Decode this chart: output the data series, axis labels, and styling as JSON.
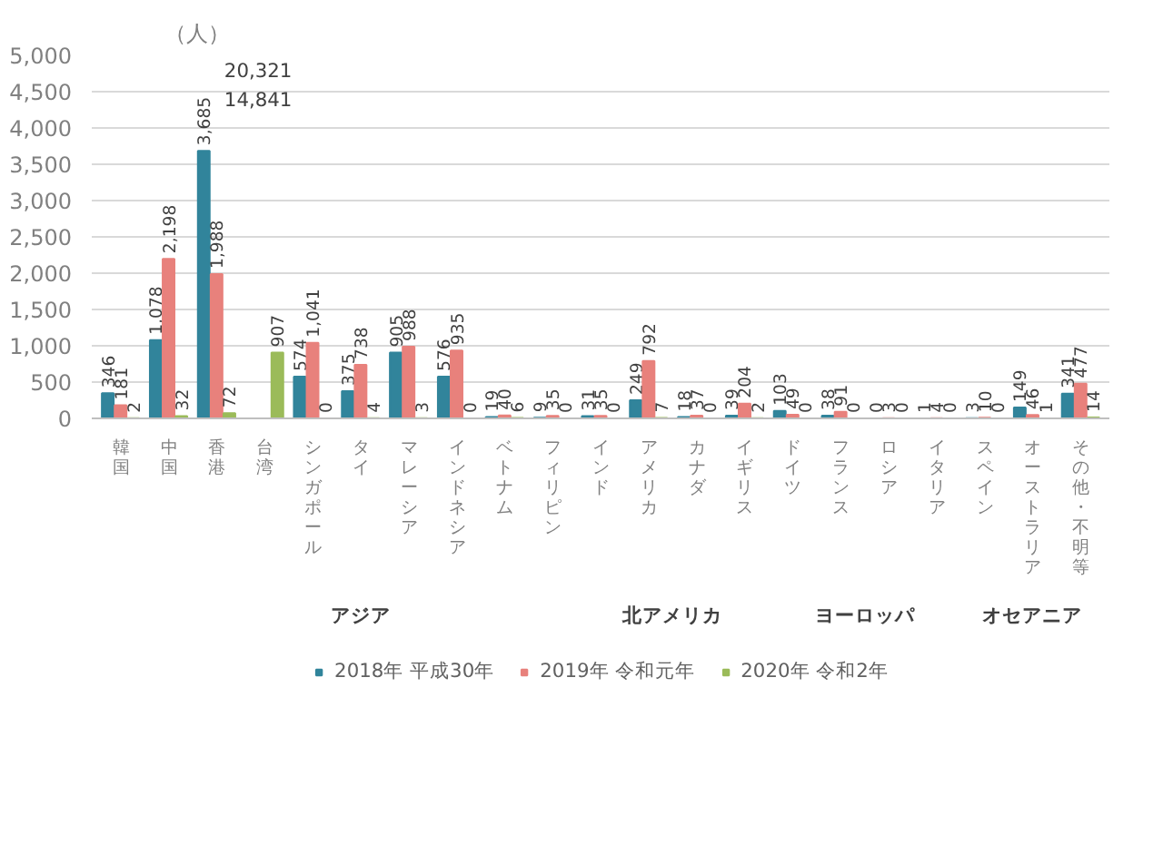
{
  "chart_data": {
    "type": "bar",
    "ylabel": "（人）",
    "categories": [
      "韓国",
      "中国",
      "香港",
      "台湾",
      "シンガポール",
      "タイ",
      "マレーシア",
      "インドネシア",
      "ベトナム",
      "フィリピン",
      "インド",
      "アメリカ",
      "カナダ",
      "イギリス",
      "ドイツ",
      "フランス",
      "ロシア",
      "イタリア",
      "スペイン",
      "オーストラリア",
      "その他・不明等"
    ],
    "series": [
      {
        "name": "2018年 平成30年",
        "color": "#31849b",
        "values": [
          346,
          1078,
          3685,
          null,
          574,
          375,
          905,
          576,
          19,
          9,
          31,
          249,
          18,
          39,
          103,
          38,
          0,
          1,
          3,
          149,
          341
        ],
        "value_labels": [
          "346",
          "1,078",
          "3,685",
          "14,841",
          "574",
          "375",
          "905",
          "576",
          "19",
          "9",
          "31",
          "249",
          "18",
          "39",
          "103",
          "38",
          "0",
          "1",
          "3",
          "149",
          "341"
        ]
      },
      {
        "name": "2019年 令和元年",
        "color": "#e8817c",
        "values": [
          181,
          2198,
          1988,
          null,
          1041,
          738,
          988,
          935,
          40,
          35,
          35,
          792,
          37,
          204,
          49,
          91,
          3,
          4,
          10,
          46,
          477
        ],
        "value_labels": [
          "181",
          "2,198",
          "1,988",
          "20,321",
          "1,041",
          "738",
          "988",
          "935",
          "40",
          "35",
          "35",
          "792",
          "37",
          "204",
          "49",
          "91",
          "3",
          "4",
          "10",
          "46",
          "477"
        ]
      },
      {
        "name": "2020年 令和2年",
        "color": "#9bbb59",
        "values": [
          2,
          32,
          72,
          907,
          0,
          4,
          3,
          0,
          6,
          0,
          0,
          7,
          0,
          2,
          0,
          0,
          0,
          0,
          0,
          1,
          14
        ],
        "value_labels": [
          "2",
          "32",
          "72",
          "907",
          "0",
          "4",
          "3",
          "0",
          "6",
          "0",
          "0",
          "7",
          "0",
          "2",
          "0",
          "0",
          "0",
          "0",
          "0",
          "1",
          "14"
        ]
      }
    ],
    "ylim": [
      0,
      5000
    ],
    "yticks": [
      {
        "value": 0,
        "label": "0"
      },
      {
        "value": 500,
        "label": "500"
      },
      {
        "value": 1000,
        "label": "1,000"
      },
      {
        "value": 1500,
        "label": "1,500"
      },
      {
        "value": 2000,
        "label": "2,000"
      },
      {
        "value": 2500,
        "label": "2,500"
      },
      {
        "value": 3000,
        "label": "3,000"
      },
      {
        "value": 3500,
        "label": "3,500"
      },
      {
        "value": 4000,
        "label": "4,000"
      },
      {
        "value": 4500,
        "label": "4,500"
      },
      {
        "value": 5000,
        "label": "5,000"
      }
    ],
    "annotations": [
      "アジア",
      "北アメリカ",
      "ヨーロッパ",
      "オセアニア"
    ],
    "grid": "y",
    "legend": "bottom"
  }
}
